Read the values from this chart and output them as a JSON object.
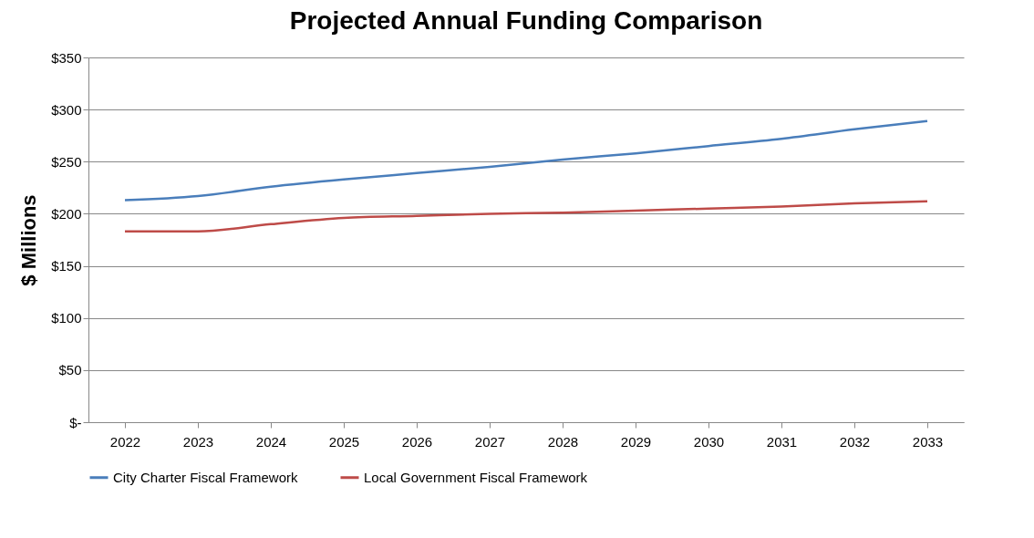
{
  "chart_data": {
    "type": "line",
    "title": "Projected Annual Funding Comparison",
    "ylabel": "$ Millions",
    "categories": [
      "2022",
      "2023",
      "2024",
      "2025",
      "2026",
      "2027",
      "2028",
      "2029",
      "2030",
      "2031",
      "2032",
      "2033"
    ],
    "series": [
      {
        "name": "City Charter Fiscal Framework",
        "color": "#4a7ebb",
        "values": [
          213,
          217,
          226,
          233,
          239,
          245,
          252,
          258,
          265,
          272,
          281,
          289
        ]
      },
      {
        "name": "Local Government Fiscal Framework",
        "color": "#be4b48",
        "values": [
          183,
          183,
          190,
          196,
          198,
          200,
          201,
          203,
          205,
          207,
          210,
          212
        ]
      }
    ],
    "ylim": [
      0,
      350
    ],
    "yticks": [
      {
        "value": 0,
        "label": "$-"
      },
      {
        "value": 50,
        "label": "$50"
      },
      {
        "value": 100,
        "label": "$100"
      },
      {
        "value": 150,
        "label": "$150"
      },
      {
        "value": 200,
        "label": "$200"
      },
      {
        "value": 250,
        "label": "$250"
      },
      {
        "value": 300,
        "label": "$300"
      },
      {
        "value": 350,
        "label": "$350"
      }
    ],
    "grid": "y",
    "legend": "bottom",
    "marker": "none",
    "line_style": "solid"
  }
}
